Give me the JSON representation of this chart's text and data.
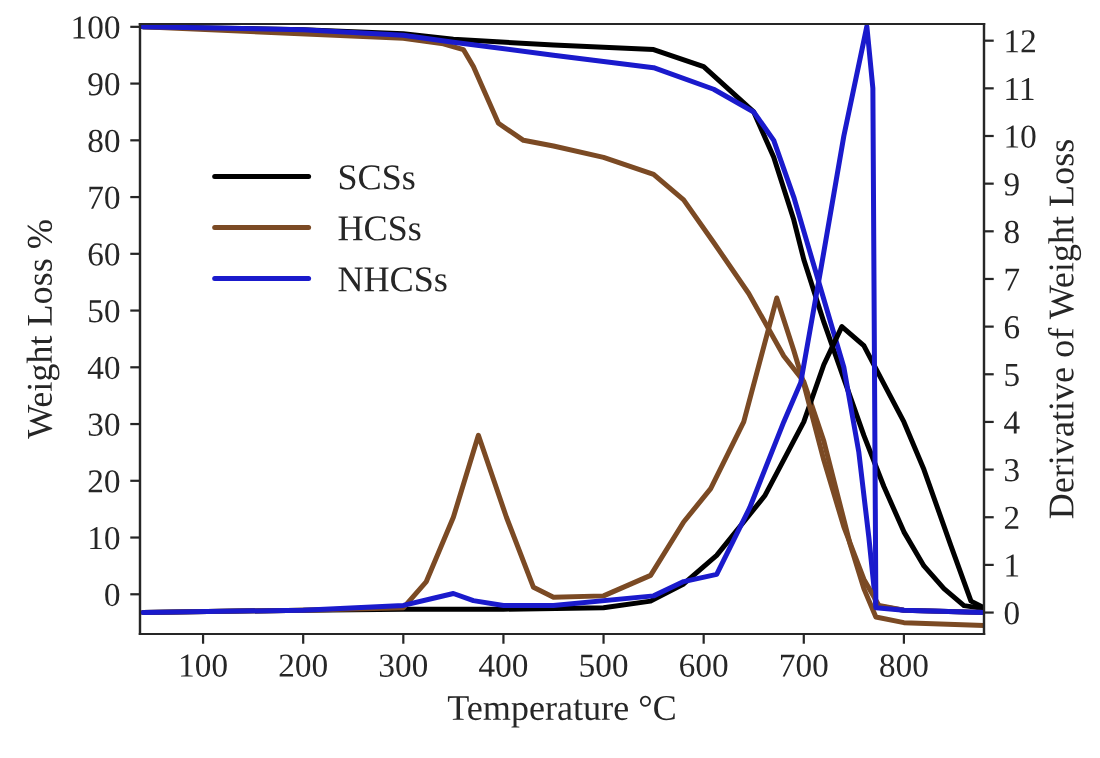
{
  "chart_data": {
    "type": "line",
    "xlabel": "Temperature °C",
    "ylabel": "Weight Loss %",
    "y2label": "Derivative of Weight Loss",
    "xlim": [
      37,
      880
    ],
    "ylim": [
      -7,
      100.5
    ],
    "y2lim": [
      -0.45,
      12.35
    ],
    "xticks": [
      100,
      200,
      300,
      400,
      500,
      600,
      700,
      800
    ],
    "yticks": [
      0,
      10,
      20,
      30,
      40,
      50,
      60,
      70,
      80,
      90,
      100
    ],
    "y2ticks": [
      0,
      1,
      2,
      3,
      4,
      5,
      6,
      7,
      8,
      9,
      10,
      11,
      12
    ],
    "legend": "left",
    "grid": false,
    "series": [
      {
        "name": "SCSs",
        "color": "#000000",
        "axis": "y",
        "x": [
          40,
          200,
          300,
          350,
          450,
          550,
          600,
          650,
          670,
          690,
          700,
          720,
          740,
          760,
          780,
          800,
          820,
          840,
          860,
          880
        ],
        "values": [
          100,
          99.5,
          98.8,
          97.8,
          96.8,
          96,
          93,
          85,
          77,
          66,
          59,
          48,
          38,
          28,
          19,
          11,
          5,
          1,
          -2,
          -2.5
        ]
      },
      {
        "name": "HCSs",
        "color": "#7b4a24",
        "axis": "y",
        "x": [
          40,
          300,
          340,
          360,
          370,
          380,
          395,
          420,
          450,
          500,
          550,
          580,
          610,
          645,
          680,
          700,
          720,
          746,
          760,
          772,
          800,
          880
        ],
        "values": [
          100,
          98,
          97,
          96,
          93,
          89,
          83,
          80,
          79,
          77,
          74,
          69.5,
          62,
          53,
          42,
          37.5,
          27,
          9,
          1,
          -4,
          -5,
          -5.5
        ]
      },
      {
        "name": "NHCSs",
        "color": "#1a1acc",
        "axis": "y",
        "x": [
          40,
          200,
          300,
          350,
          450,
          550,
          610,
          650,
          670,
          690,
          700,
          720,
          740,
          755,
          765,
          772,
          800,
          880
        ],
        "values": [
          100,
          99.5,
          98.5,
          97.3,
          95,
          92.8,
          89,
          85,
          80,
          70,
          64,
          52,
          40,
          25,
          10,
          -2,
          -2.8,
          -3.2
        ]
      },
      {
        "color": "#000000",
        "axis": "y2",
        "x": [
          40,
          200,
          300,
          400,
          500,
          547,
          580,
          613,
          661,
          700,
          720,
          738,
          760,
          780,
          800,
          820,
          847,
          867,
          880
        ],
        "values": [
          0,
          0.05,
          0.07,
          0.07,
          0.1,
          0.24,
          0.6,
          1.2,
          2.45,
          4.0,
          5.2,
          6.0,
          5.6,
          4.8,
          4.0,
          3.0,
          1.4,
          0.24,
          0.1
        ]
      },
      {
        "color": "#7b4a24",
        "axis": "y2",
        "x": [
          40,
          200,
          300,
          323,
          350,
          375,
          403,
          430,
          450,
          500,
          547,
          580,
          607,
          640,
          673,
          690,
          700,
          720,
          740,
          760,
          775,
          800,
          880
        ],
        "values": [
          0,
          0.05,
          0.1,
          0.65,
          2.0,
          3.72,
          2.0,
          0.53,
          0.32,
          0.35,
          0.78,
          1.9,
          2.6,
          4.0,
          6.6,
          5.5,
          4.8,
          3.2,
          1.8,
          0.7,
          0.15,
          0.05,
          0
        ]
      },
      {
        "color": "#1a1acc",
        "axis": "y2",
        "x": [
          40,
          200,
          300,
          330,
          350,
          370,
          400,
          450,
          550,
          580,
          613,
          646,
          680,
          697,
          717,
          740,
          763,
          769,
          772,
          800,
          880
        ],
        "values": [
          0,
          0.05,
          0.15,
          0.3,
          0.4,
          0.25,
          0.15,
          0.15,
          0.35,
          0.65,
          0.8,
          2.2,
          4.0,
          4.83,
          7.2,
          10,
          12.3,
          11,
          0.1,
          0.05,
          0
        ]
      }
    ]
  }
}
